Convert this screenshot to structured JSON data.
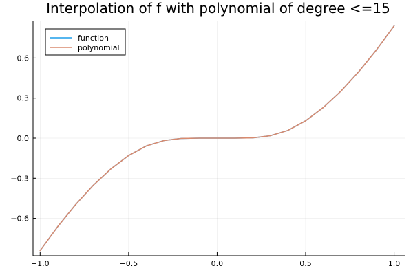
{
  "chart_data": {
    "type": "line",
    "title": "Interpolation of f with polynomial of degree <=15",
    "xlim": [
      -1.04,
      1.06
    ],
    "ylim": [
      -0.88,
      0.88
    ],
    "x_ticks": [
      -1.0,
      -0.5,
      0.0,
      0.5,
      1.0
    ],
    "x_tick_labels": [
      "−1.0",
      "−0.5",
      "0.0",
      "0.5",
      "1.0"
    ],
    "y_ticks": [
      -0.6,
      -0.3,
      0.0,
      0.3,
      0.6
    ],
    "y_tick_labels": [
      "−0.6",
      "−0.3",
      "0.0",
      "0.3",
      "0.6"
    ],
    "grid": true,
    "legend_position": "top-left",
    "x": [
      -1.0,
      -0.9,
      -0.8,
      -0.7,
      -0.6,
      -0.5,
      -0.4,
      -0.3,
      -0.2,
      -0.1,
      0.0,
      0.1,
      0.2,
      0.3,
      0.4,
      0.5,
      0.6,
      0.7,
      0.8,
      0.9,
      1.0
    ],
    "series": [
      {
        "name": "function",
        "color": "#1f9eea",
        "values": [
          -0.841,
          -0.661,
          -0.498,
          -0.353,
          -0.23,
          -0.13,
          -0.058,
          -0.018,
          -0.002,
          0.0,
          0.0,
          0.0,
          0.002,
          0.018,
          0.058,
          0.13,
          0.23,
          0.353,
          0.498,
          0.661,
          0.841
        ]
      },
      {
        "name": "polynomial",
        "color": "#d98a6e",
        "values": [
          -0.841,
          -0.661,
          -0.498,
          -0.353,
          -0.23,
          -0.13,
          -0.058,
          -0.018,
          -0.002,
          0.0,
          0.0,
          0.0,
          0.002,
          0.018,
          0.058,
          0.13,
          0.23,
          0.353,
          0.498,
          0.661,
          0.841
        ]
      }
    ]
  }
}
